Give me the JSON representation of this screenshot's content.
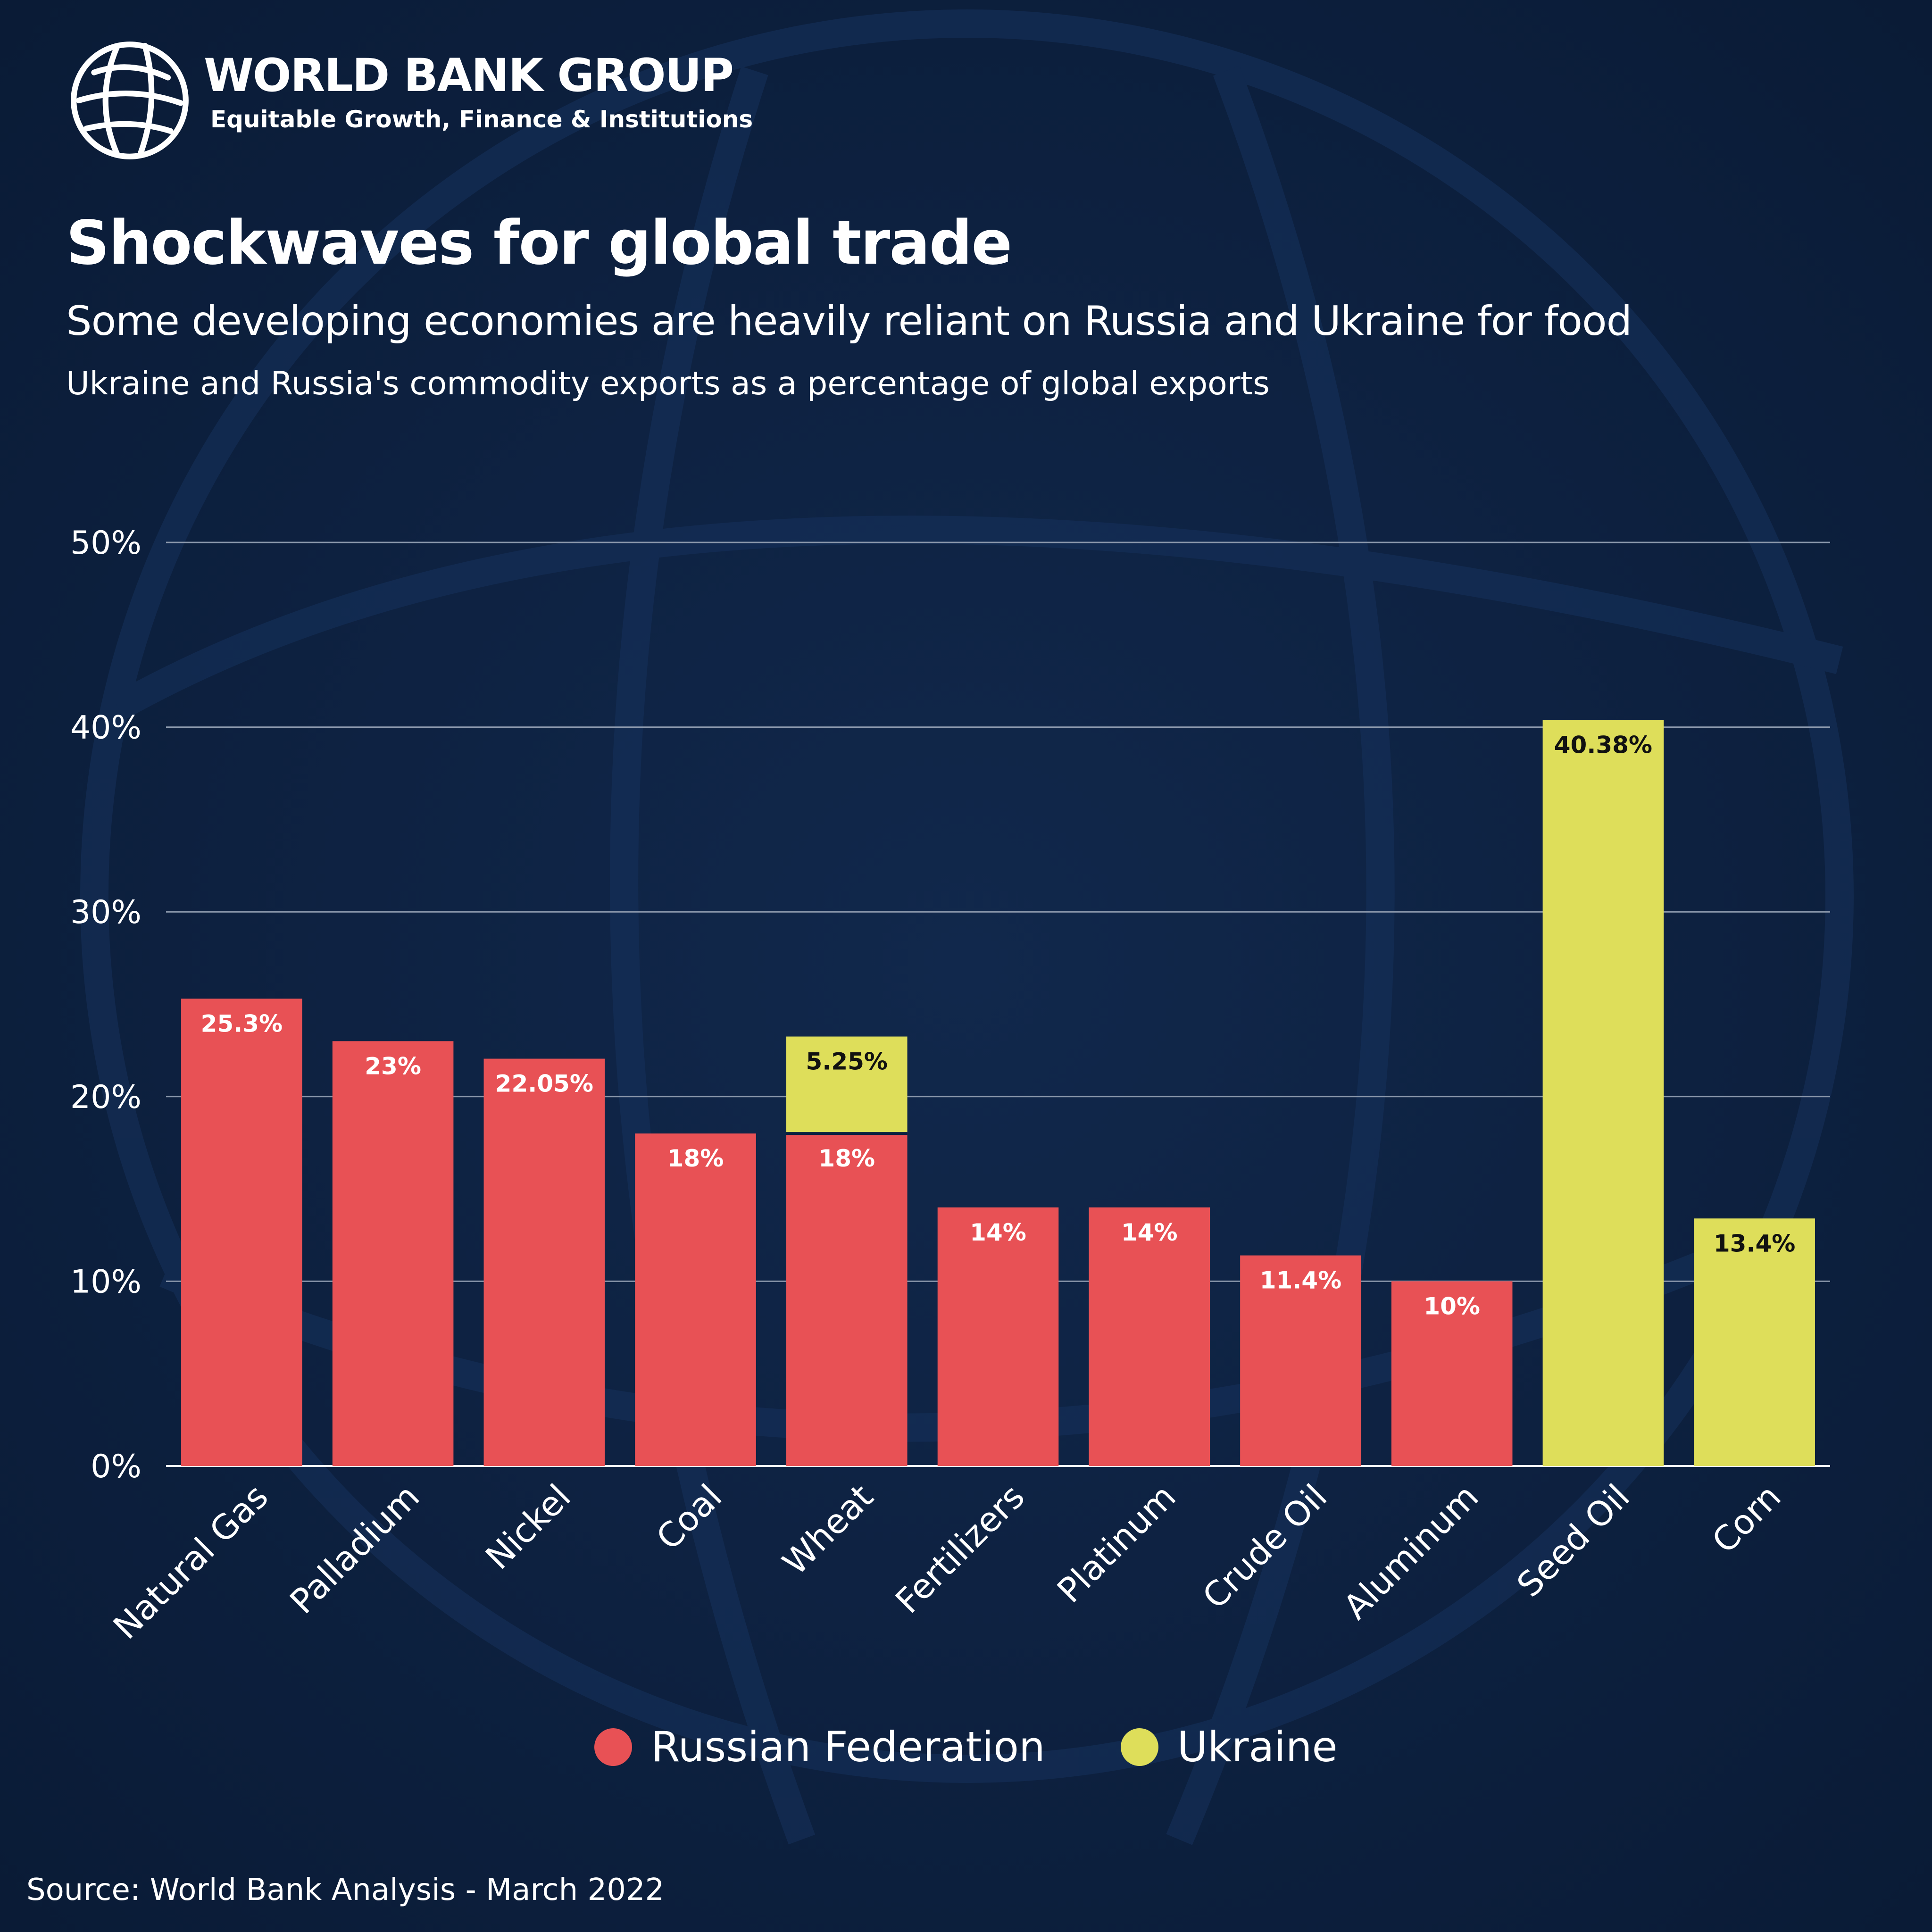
{
  "org": {
    "name": "WORLD BANK GROUP",
    "sub": "Equitable Growth, Finance & Institutions"
  },
  "title": "Shockwaves for global trade",
  "subtitle": "Some developing economies are heavily reliant on Russia and Ukraine for food",
  "subtitle2": "Ukraine and Russia's commodity exports as a percentage of global exports",
  "colors": {
    "background": "#0c2040",
    "russia": "#e85155",
    "ukraine": "#dede5a",
    "grid": "#8a97ab"
  },
  "legend": [
    {
      "label": "Russian Federation",
      "color": "#e85155"
    },
    {
      "label": "Ukraine",
      "color": "#dede5a"
    }
  ],
  "source": "Source: World Bank Analysis - March 2022",
  "chart_data": {
    "type": "bar",
    "stacked": true,
    "title": "Shockwaves for global trade",
    "ylabel": "",
    "xlabel": "",
    "ylim": [
      0,
      50
    ],
    "yticks": [
      0,
      10,
      20,
      30,
      40,
      50
    ],
    "ytick_labels": [
      "0%",
      "10%",
      "20%",
      "30%",
      "40%",
      "50%"
    ],
    "grid": true,
    "legend_position": "bottom-center",
    "categories": [
      "Natural Gas",
      "Palladium",
      "Nickel",
      "Coal",
      "Wheat",
      "Fertilizers",
      "Platinum",
      "Crude Oil",
      "Aluminum",
      "Seed Oil",
      "Corn"
    ],
    "series": [
      {
        "name": "Russian Federation",
        "color": "#e85155",
        "values": [
          25.3,
          23,
          22.05,
          18,
          18,
          14,
          14,
          11.4,
          10,
          0,
          0
        ],
        "labels": [
          "25.3%",
          "23%",
          "22.05%",
          "18%",
          "18%",
          "14%",
          "14%",
          "11.4%",
          "10%",
          "",
          ""
        ]
      },
      {
        "name": "Ukraine",
        "color": "#dede5a",
        "values": [
          0,
          0,
          0,
          0,
          5.25,
          0,
          0,
          0,
          0,
          40.38,
          13.4
        ],
        "labels": [
          "",
          "",
          "",
          "",
          "5.25%",
          "",
          "",
          "",
          "",
          "40.38%",
          "13.4%"
        ]
      }
    ]
  }
}
